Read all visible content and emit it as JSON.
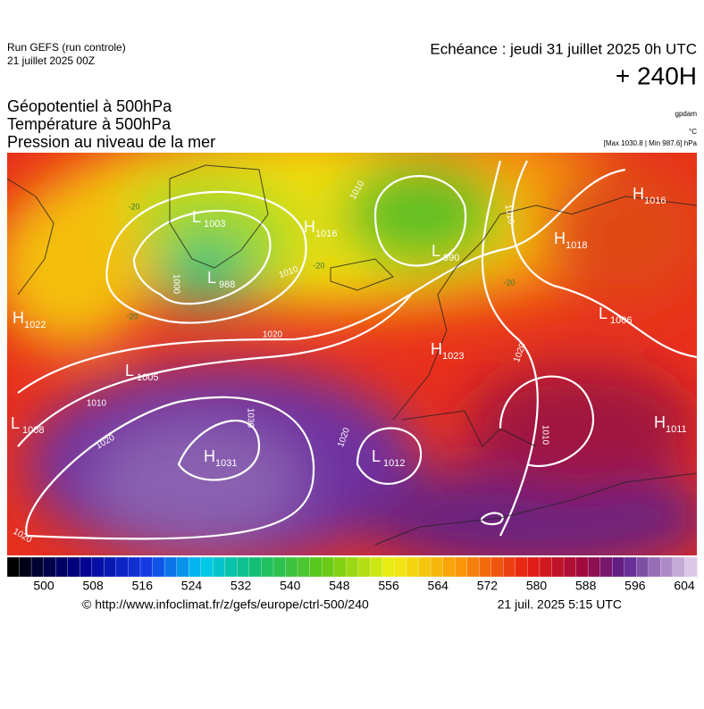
{
  "header": {
    "run": "Run GEFS (run controle)",
    "run_date": "21 juillet 2025 00Z",
    "echeance": "Echéance : jeudi 31 juillet 2025 0h UTC",
    "lead": "+ 240H",
    "titles": [
      "Géopotentiel à 500hPa",
      "Température à 500hPa",
      "Pression au niveau de la mer"
    ],
    "units": [
      "gpdam",
      "°C"
    ],
    "extremes": "[Max 1030.8 | Min 987.6] hPa"
  },
  "map": {
    "centers": [
      {
        "kind": "L",
        "value": "1003"
      },
      {
        "kind": "H",
        "value": "1016"
      },
      {
        "kind": "L",
        "value": "988"
      },
      {
        "kind": "L",
        "value": "990"
      },
      {
        "kind": "H",
        "value": "1016"
      },
      {
        "kind": "H",
        "value": "1018"
      },
      {
        "kind": "H",
        "value": "1022"
      },
      {
        "kind": "L",
        "value": "1005"
      },
      {
        "kind": "L",
        "value": "1006"
      },
      {
        "kind": "H",
        "value": "1023"
      },
      {
        "kind": "L",
        "value": "1008"
      },
      {
        "kind": "H",
        "value": "1031"
      },
      {
        "kind": "L",
        "value": "1012"
      },
      {
        "kind": "H",
        "value": "1011"
      }
    ],
    "isobar_labels": [
      "1010",
      "1010",
      "1000",
      "1010",
      "1020",
      "1010",
      "1020",
      "1030",
      "1020",
      "1020",
      "1010",
      "1020"
    ],
    "temperature_labels": [
      "-20",
      "-20",
      "-20",
      "-20"
    ]
  },
  "colorbar": {
    "ticks": [
      500,
      508,
      516,
      524,
      532,
      540,
      548,
      556,
      564,
      572,
      580,
      588,
      596,
      604
    ]
  },
  "footer": {
    "url": "© http://www.infoclimat.fr/z/gefs/europe/ctrl-500/240",
    "issued": "21 juil. 2025  5:15 UTC"
  }
}
